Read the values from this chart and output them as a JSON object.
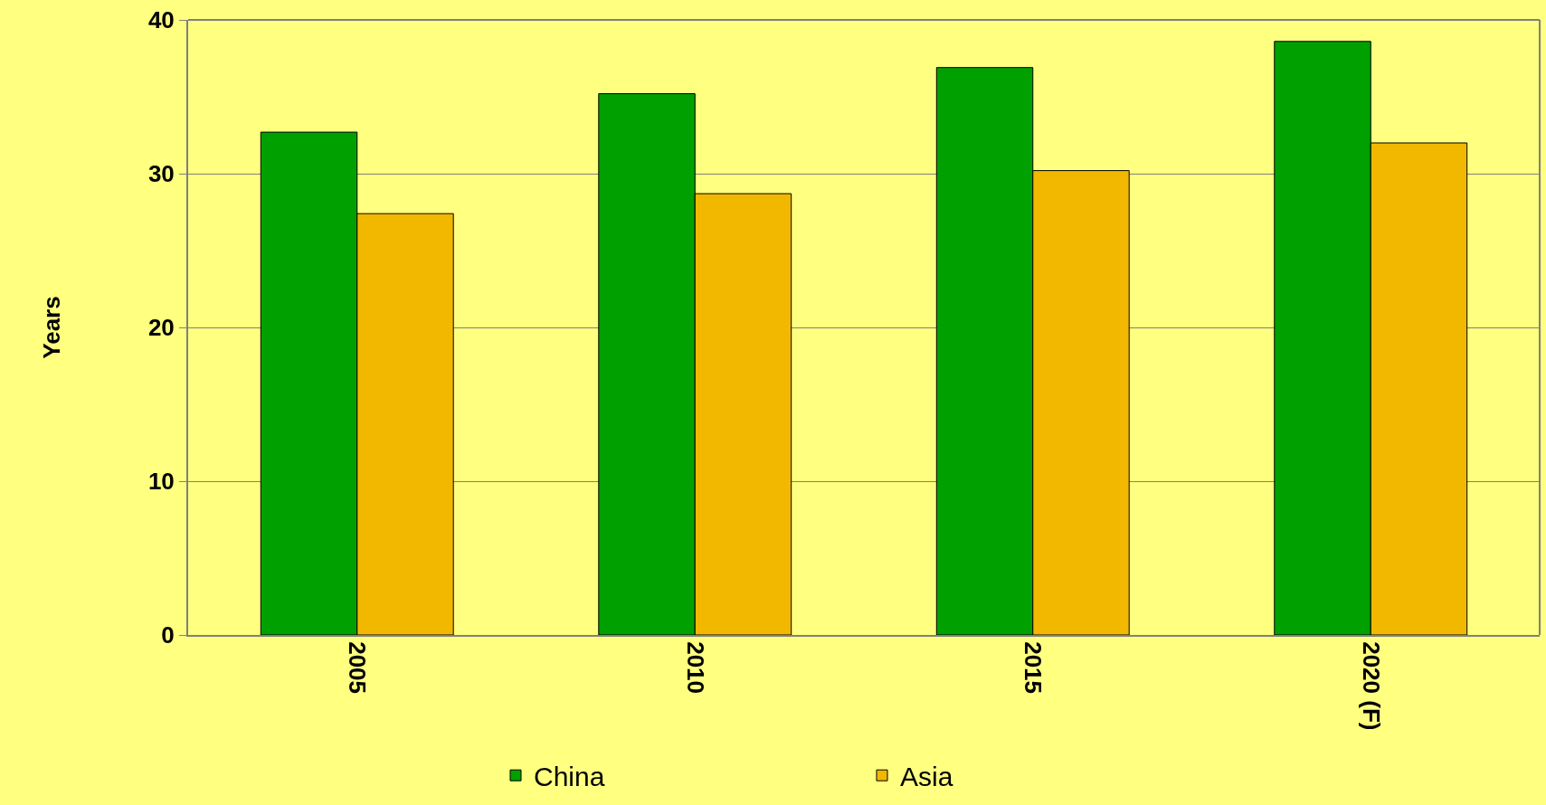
{
  "chart_data": {
    "type": "bar",
    "ylabel": "Years",
    "categories": [
      "2005",
      "2010",
      "2015",
      "2020 (F)"
    ],
    "series": [
      {
        "name": "China",
        "color": "#00a000",
        "values": [
          32.7,
          35.2,
          36.9,
          38.6
        ]
      },
      {
        "name": "Asia",
        "color": "#f2b800",
        "values": [
          27.4,
          28.7,
          30.2,
          32.0
        ]
      }
    ],
    "ylim": [
      0,
      40
    ],
    "yticks": [
      0,
      10,
      20,
      30,
      40
    ],
    "grid": "y",
    "legend": "bottom"
  }
}
